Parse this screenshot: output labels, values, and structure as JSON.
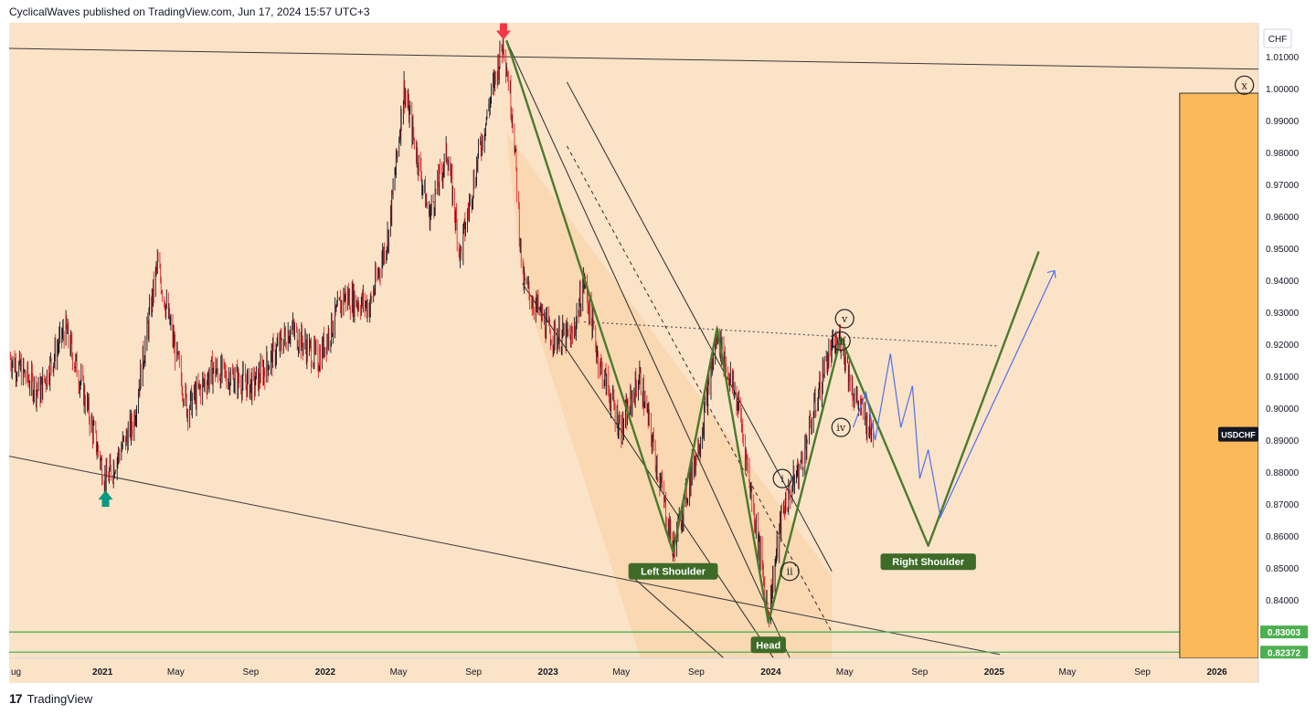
{
  "header": {
    "publish_line": "CyclicalWaves published on TradingView.com, Jun 17, 2024 15:57 UTC+3"
  },
  "footer": {
    "brand": "TradingView",
    "logo_glyph": "17"
  },
  "colors": {
    "background": "#fbe3c8",
    "channel_fill": "#f7cfa0",
    "candle_up": "#131722",
    "candle_down": "#e0262b",
    "wave_green": "#4a7a2c",
    "projection_blue": "#4f6ff0",
    "support_green": "#4caf50",
    "arrow_red": "#f23645",
    "arrow_teal": "#089981",
    "time_box": "#fbb95a",
    "label_bg": "#3e6b27"
  },
  "chart_data": {
    "type": "candlestick",
    "symbol": "USDCHF",
    "currency": "CHF",
    "x_ticks": [
      "ug",
      "2021",
      "May",
      "Sep",
      "2022",
      "May",
      "Sep",
      "2023",
      "May",
      "Sep",
      "2024",
      "May",
      "Sep",
      "2025",
      "May",
      "Sep",
      "2026"
    ],
    "y_ticks": [
      "1.01000",
      "1.00000",
      "0.99000",
      "0.98000",
      "0.97000",
      "0.96000",
      "0.95000",
      "0.94000",
      "0.93000",
      "0.92000",
      "0.91000",
      "0.90000",
      "0.89000",
      "0.88000",
      "0.87000",
      "0.86000",
      "0.85000",
      "0.84000"
    ],
    "ylim": [
      0.8218,
      1.0205
    ],
    "xlim": [
      "2020-08-01",
      "2026-03-10"
    ],
    "price_key_points": [
      [
        "2020-08-01",
        0.916
      ],
      [
        "2020-09-20",
        0.905
      ],
      [
        "2020-11-01",
        0.925
      ],
      [
        "2020-12-01",
        0.905
      ],
      [
        "2021-01-06",
        0.877
      ],
      [
        "2021-02-20",
        0.895
      ],
      [
        "2021-04-01",
        0.945
      ],
      [
        "2021-05-20",
        0.9
      ],
      [
        "2021-07-01",
        0.912
      ],
      [
        "2021-09-05",
        0.907
      ],
      [
        "2021-11-05",
        0.925
      ],
      [
        "2021-12-20",
        0.915
      ],
      [
        "2022-02-01",
        0.935
      ],
      [
        "2022-03-15",
        0.932
      ],
      [
        "2022-04-15",
        0.955
      ],
      [
        "2022-05-10",
        1.0
      ],
      [
        "2022-06-20",
        0.96
      ],
      [
        "2022-07-20",
        0.98
      ],
      [
        "2022-08-10",
        0.948
      ],
      [
        "2022-09-10",
        0.98
      ],
      [
        "2022-10-20",
        1.015
      ],
      [
        "2022-11-05",
        0.99
      ],
      [
        "2022-11-20",
        0.94
      ],
      [
        "2023-01-05",
        0.923
      ],
      [
        "2023-02-10",
        0.922
      ],
      [
        "2023-03-01",
        0.94
      ],
      [
        "2023-03-25",
        0.915
      ],
      [
        "2023-05-01",
        0.893
      ],
      [
        "2023-05-31",
        0.91
      ],
      [
        "2023-07-25",
        0.856
      ],
      [
        "2023-09-10",
        0.893
      ],
      [
        "2023-10-05",
        0.923
      ],
      [
        "2023-11-10",
        0.9
      ],
      [
        "2023-12-28",
        0.836
      ],
      [
        "2024-01-20",
        0.868
      ],
      [
        "2024-02-20",
        0.883
      ],
      [
        "2024-04-01",
        0.915
      ],
      [
        "2024-04-25",
        0.922
      ],
      [
        "2024-05-15",
        0.905
      ],
      [
        "2024-06-17",
        0.891
      ]
    ],
    "horizontal_levels": [
      {
        "value": 0.83003,
        "label": "0.83003"
      },
      {
        "value": 0.82372,
        "label": "0.82372"
      }
    ],
    "last_price_tag": "USDCHF",
    "trend_lines": [
      {
        "from": [
          "2020-08-01",
          1.0125
        ],
        "to": [
          "2026-03-10",
          1.006
        ]
      },
      {
        "from": [
          "2020-08-01",
          0.885
        ],
        "to": [
          "2025-01-10",
          0.823
        ]
      }
    ],
    "channel": {
      "upper": [
        [
          "2023-02-01",
          1.002
        ],
        [
          "2024-04-10",
          0.849
        ]
      ],
      "mid": [
        [
          "2023-02-01",
          0.982
        ],
        [
          "2024-04-10",
          0.83
        ]
      ],
      "lower": [
        [
          "2022-11-20",
          0.939
        ],
        [
          "2024-01-05",
          0.822
        ]
      ],
      "inner_upper": [
        [
          "2022-10-25",
          1.015
        ],
        [
          "2024-02-01",
          0.822
        ]
      ],
      "inner_lower": [
        [
          "2023-05-15",
          0.848
        ],
        [
          "2023-10-15",
          0.822
        ]
      ]
    },
    "neckline": [
      [
        "2023-03-01",
        0.927
      ],
      [
        "2025-01-05",
        0.9195
      ]
    ],
    "wave_path": [
      [
        "2022-10-25",
        1.015
      ],
      [
        "2023-07-25",
        0.855
      ],
      [
        "2023-10-05",
        0.925
      ],
      [
        "2023-12-28",
        0.833
      ],
      [
        "2024-04-25",
        0.922
      ],
      [
        "2024-09-15",
        0.857
      ],
      [
        "2025-03-15",
        0.949
      ]
    ],
    "projection_path": [
      [
        "2024-05-15",
        0.894
      ],
      [
        "2024-06-05",
        0.905
      ],
      [
        "2024-06-20",
        0.89
      ],
      [
        "2024-07-15",
        0.917
      ],
      [
        "2024-08-01",
        0.894
      ],
      [
        "2024-08-20",
        0.907
      ],
      [
        "2024-09-01",
        0.878
      ],
      [
        "2024-09-15",
        0.887
      ],
      [
        "2024-10-05",
        0.866
      ],
      [
        "2025-04-10",
        0.943
      ]
    ],
    "wave_labels": [
      {
        "text": "i",
        "at": [
          "2024-01-20",
          0.878
        ]
      },
      {
        "text": "ii",
        "at": [
          "2024-02-01",
          0.849
        ]
      },
      {
        "text": "iii",
        "at": [
          "2024-04-25",
          0.921
        ]
      },
      {
        "text": "iv",
        "at": [
          "2024-04-25",
          0.894
        ]
      },
      {
        "text": "v",
        "at": [
          "2024-05-01",
          0.928
        ]
      },
      {
        "text": "x",
        "at": [
          "2026-02-15",
          1.001
        ]
      }
    ],
    "pattern_labels": [
      {
        "text": "Left Shoulder",
        "at": [
          "2023-07-25",
          0.849
        ]
      },
      {
        "text": "Head",
        "at": [
          "2023-12-28",
          0.826
        ]
      },
      {
        "text": "Right Shoulder",
        "at": [
          "2024-09-15",
          0.852
        ]
      }
    ],
    "arrows": [
      {
        "kind": "down",
        "at": [
          "2022-10-20",
          1.0175
        ]
      },
      {
        "kind": "up",
        "at": [
          "2021-01-06",
          0.872
        ]
      }
    ],
    "time_box": {
      "from": "2025-11-01",
      "to": "2026-03-10",
      "top": 0.9985
    }
  }
}
